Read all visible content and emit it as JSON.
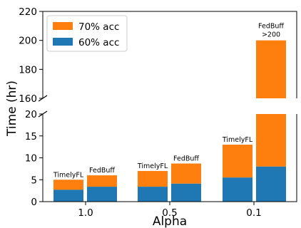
{
  "chart_data": {
    "type": "bar",
    "stacked": true,
    "broken_y_axis": true,
    "xlabel": "Alpha",
    "ylabel": "Time (hr)",
    "categories": [
      "1.0",
      "0.5",
      "0.1"
    ],
    "ylim_top": [
      160,
      220
    ],
    "ylim_bottom": [
      0,
      20
    ],
    "yticks_top": [
      "160",
      "180",
      "200",
      "220"
    ],
    "yticks_bottom": [
      "0",
      "5",
      "10",
      "15",
      "20"
    ],
    "legend": {
      "placement": "top-left",
      "entries": [
        "70% acc",
        "60% acc"
      ]
    },
    "series_colors": {
      "60% acc": "#1f77b4",
      "70% acc": "#ff7f0e"
    },
    "bars": [
      {
        "category": "1.0",
        "method": "TimelyFL",
        "acc60": 2.7,
        "acc70": 5.0
      },
      {
        "category": "1.0",
        "method": "FedBuff",
        "acc60": 3.4,
        "acc70": 6.0
      },
      {
        "category": "0.5",
        "method": "TimelyFL",
        "acc60": 3.4,
        "acc70": 7.0
      },
      {
        "category": "0.5",
        "method": "FedBuff",
        "acc60": 4.1,
        "acc70": 8.7
      },
      {
        "category": "0.1",
        "method": "TimelyFL",
        "acc60": 5.5,
        "acc70": 13.0
      },
      {
        "category": "0.1",
        "method": "FedBuff",
        "acc60": 8.0,
        "acc70": 200,
        "label_suffix": ">200"
      }
    ]
  }
}
